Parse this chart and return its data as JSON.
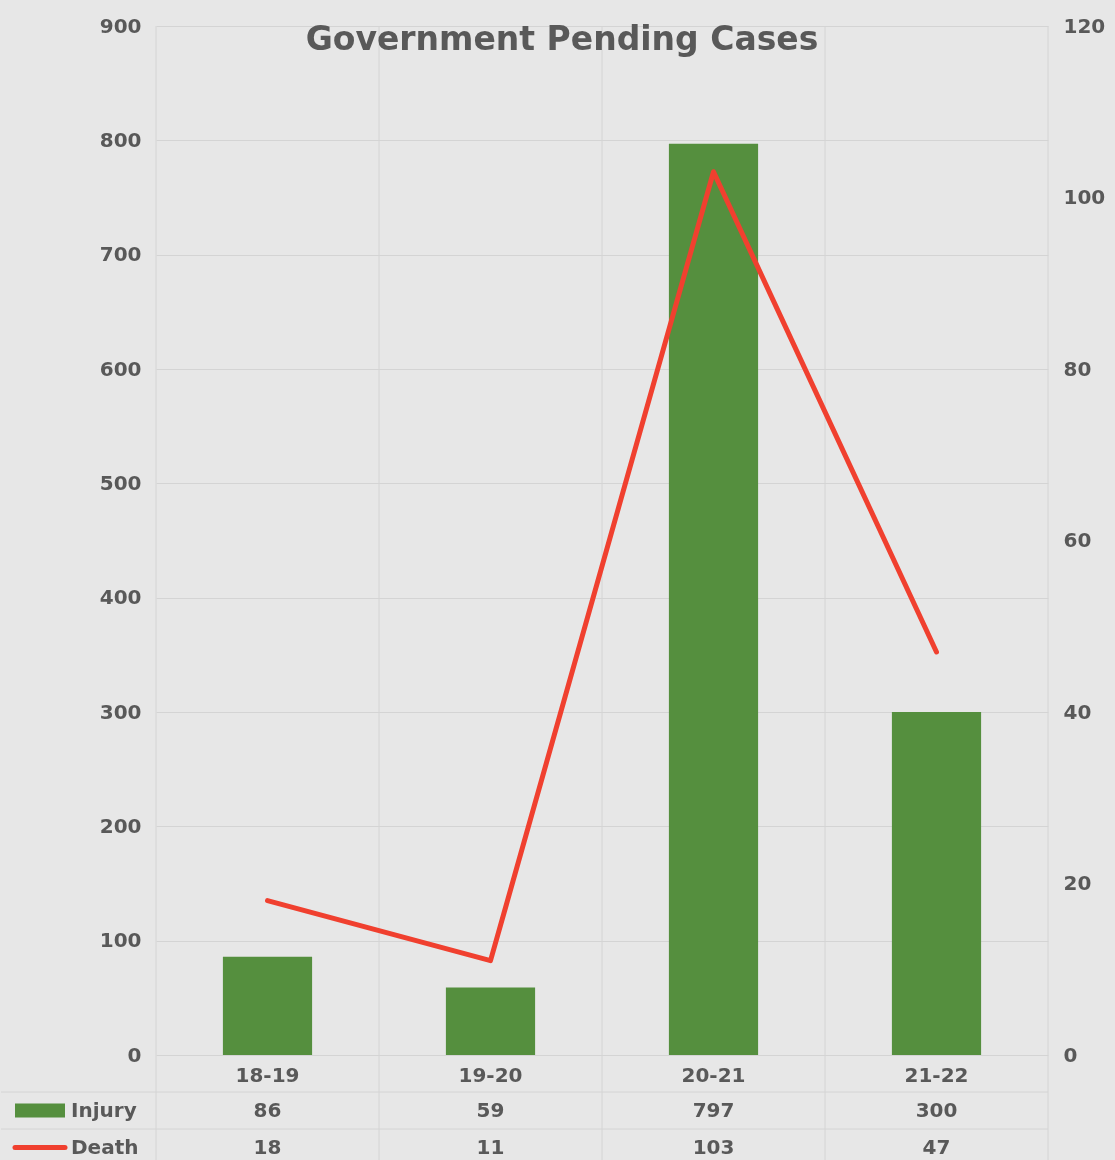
{
  "chart_data": {
    "type": "bar",
    "title": "Government Pending Cases",
    "categories": [
      "18-19",
      "19-20",
      "20-21",
      "21-22"
    ],
    "series": [
      {
        "name": "Injury",
        "color": "#558f3e",
        "values": [
          86,
          59,
          797,
          300
        ]
      },
      {
        "name": "Death",
        "type": "line",
        "axis": "y2",
        "color": "#f0402f",
        "values": [
          18,
          11,
          103,
          47
        ]
      }
    ],
    "ylim": [
      0,
      900
    ],
    "yticks": [
      0,
      100,
      200,
      300,
      400,
      500,
      600,
      700,
      800,
      900
    ],
    "y2lim": [
      0,
      120
    ],
    "y2ticks": [
      0,
      20,
      40,
      60,
      80,
      100,
      120
    ],
    "grid": true,
    "legend": "bottom",
    "data_labels": true,
    "marker": "none",
    "line_style": "solid"
  }
}
